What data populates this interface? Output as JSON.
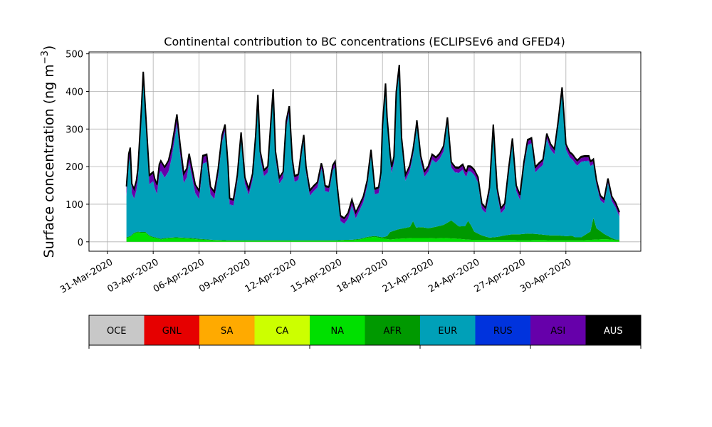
{
  "chart_data": {
    "type": "area",
    "stacked": true,
    "title": "Continental contribution to BC concentrations (ECLIPSEv6 and GFED4)",
    "ylabel": "Surface concentration (ng m⁻³)",
    "ylabel_main": "Surface concentration (ng m",
    "ylabel_sup": "−3",
    "ylabel_close": ")",
    "ylim": [
      -25,
      505
    ],
    "yticks": [
      "0",
      "100",
      "200",
      "300",
      "400",
      "500"
    ],
    "xlim": [
      -1.2,
      34.9
    ],
    "xticks": [
      {
        "pos": 0,
        "label": "31-Mar-2020"
      },
      {
        "pos": 3,
        "label": "03-Apr-2020"
      },
      {
        "pos": 6,
        "label": "06-Apr-2020"
      },
      {
        "pos": 9,
        "label": "09-Apr-2020"
      },
      {
        "pos": 12,
        "label": "12-Apr-2020"
      },
      {
        "pos": 15,
        "label": "15-Apr-2020"
      },
      {
        "pos": 18,
        "label": "18-Apr-2020"
      },
      {
        "pos": 21,
        "label": "21-Apr-2020"
      },
      {
        "pos": 24,
        "label": "24-Apr-2020"
      },
      {
        "pos": 27,
        "label": "27-Apr-2020"
      },
      {
        "pos": 30,
        "label": "30-Apr-2020"
      }
    ],
    "x_unit": "days since 31-Mar-2020 00:00",
    "grid": true,
    "legend": "colorbar below plot",
    "colors": {
      "OCE": "#c8c8c8",
      "GNL": "#e60000",
      "SA": "#ffaa00",
      "CA": "#ccff00",
      "NA": "#00e000",
      "AFR": "#009900",
      "EUR": "#00a0b8",
      "RUS": "#0033dd",
      "ASI": "#6600aa",
      "AUS": "#000000"
    },
    "legend_entries": [
      "OCE",
      "GNL",
      "SA",
      "CA",
      "NA",
      "AFR",
      "EUR",
      "RUS",
      "ASI",
      "AUS"
    ],
    "series": [
      {
        "name": "NA",
        "values": [
          [
            1.25,
            10
          ],
          [
            1.5,
            13
          ],
          [
            1.75,
            22
          ],
          [
            2.0,
            25
          ],
          [
            2.25,
            24
          ],
          [
            2.5,
            24
          ],
          [
            2.75,
            15
          ],
          [
            3.0,
            11
          ],
          [
            3.25,
            9
          ],
          [
            3.5,
            6
          ],
          [
            3.75,
            8
          ],
          [
            4.0,
            9
          ],
          [
            4.5,
            10
          ],
          [
            5.0,
            9
          ],
          [
            5.5,
            8
          ],
          [
            6.0,
            6
          ],
          [
            7.0,
            4
          ],
          [
            8.0,
            3
          ],
          [
            9.0,
            3
          ],
          [
            10.0,
            3
          ],
          [
            11.0,
            3
          ],
          [
            12.0,
            3
          ],
          [
            13.0,
            3
          ],
          [
            14.0,
            3
          ],
          [
            15.0,
            3
          ],
          [
            15.5,
            4
          ],
          [
            16.0,
            4
          ],
          [
            16.5,
            6
          ],
          [
            17.0,
            11
          ],
          [
            17.5,
            13
          ],
          [
            18.0,
            9
          ],
          [
            18.5,
            6
          ],
          [
            19.0,
            8
          ],
          [
            19.5,
            9
          ],
          [
            20.0,
            10
          ],
          [
            20.5,
            10
          ],
          [
            21.0,
            10
          ],
          [
            21.5,
            9
          ],
          [
            22.0,
            10
          ],
          [
            22.5,
            9
          ],
          [
            23.0,
            8
          ],
          [
            23.5,
            6
          ],
          [
            24.0,
            5
          ],
          [
            24.5,
            5
          ],
          [
            25.0,
            5
          ],
          [
            25.5,
            5
          ],
          [
            26.0,
            5
          ],
          [
            26.5,
            5
          ],
          [
            27.0,
            4
          ],
          [
            27.5,
            4
          ],
          [
            28.0,
            5
          ],
          [
            28.5,
            5
          ],
          [
            29.0,
            4
          ],
          [
            29.5,
            4
          ],
          [
            30.0,
            4
          ],
          [
            30.5,
            4
          ],
          [
            31.0,
            4
          ],
          [
            31.5,
            5
          ],
          [
            32.0,
            6
          ],
          [
            32.5,
            7
          ],
          [
            33.0,
            6
          ],
          [
            33.25,
            4
          ]
        ]
      },
      {
        "name": "AFR",
        "values": [
          [
            1.25,
            2
          ],
          [
            2.0,
            2
          ],
          [
            3.0,
            2
          ],
          [
            4.0,
            2
          ],
          [
            5.0,
            2
          ],
          [
            6.0,
            2
          ],
          [
            7.0,
            1
          ],
          [
            9.0,
            1
          ],
          [
            12.0,
            1
          ],
          [
            15.0,
            1
          ],
          [
            17.0,
            2
          ],
          [
            18.0,
            3
          ],
          [
            18.3,
            8
          ],
          [
            18.5,
            20
          ],
          [
            19.0,
            25
          ],
          [
            19.5,
            28
          ],
          [
            19.8,
            30
          ],
          [
            20.0,
            45
          ],
          [
            20.2,
            28
          ],
          [
            20.6,
            29
          ],
          [
            21.0,
            26
          ],
          [
            21.5,
            31
          ],
          [
            22.0,
            35
          ],
          [
            22.5,
            48
          ],
          [
            23.0,
            33
          ],
          [
            23.4,
            35
          ],
          [
            23.6,
            50
          ],
          [
            23.8,
            38
          ],
          [
            24.0,
            22
          ],
          [
            24.5,
            12
          ],
          [
            25.0,
            6
          ],
          [
            25.5,
            8
          ],
          [
            26.0,
            12
          ],
          [
            26.5,
            15
          ],
          [
            27.0,
            16
          ],
          [
            27.5,
            18
          ],
          [
            28.0,
            16
          ],
          [
            28.5,
            14
          ],
          [
            29.0,
            13
          ],
          [
            29.5,
            13
          ],
          [
            30.0,
            11
          ],
          [
            30.4,
            12
          ],
          [
            30.6,
            8
          ],
          [
            31.0,
            8
          ],
          [
            31.6,
            22
          ],
          [
            31.8,
            58
          ],
          [
            32.0,
            30
          ],
          [
            32.5,
            14
          ],
          [
            33.0,
            4
          ],
          [
            33.25,
            2
          ]
        ]
      },
      {
        "name": "EUR",
        "values": [
          [
            1.25,
            110
          ],
          [
            1.4,
            195
          ],
          [
            1.5,
            210
          ],
          [
            1.6,
            110
          ],
          [
            1.75,
            90
          ],
          [
            1.9,
            110
          ],
          [
            2.0,
            140
          ],
          [
            2.2,
            280
          ],
          [
            2.35,
            400
          ],
          [
            2.5,
            295
          ],
          [
            2.75,
            135
          ],
          [
            3.0,
            148
          ],
          [
            3.1,
            130
          ],
          [
            3.25,
            115
          ],
          [
            3.4,
            170
          ],
          [
            3.5,
            180
          ],
          [
            3.75,
            160
          ],
          [
            4.0,
            175
          ],
          [
            4.2,
            210
          ],
          [
            4.4,
            260
          ],
          [
            4.55,
            300
          ],
          [
            4.75,
            225
          ],
          [
            5.0,
            145
          ],
          [
            5.2,
            160
          ],
          [
            5.35,
            200
          ],
          [
            5.5,
            170
          ],
          [
            5.75,
            120
          ],
          [
            6.0,
            105
          ],
          [
            6.25,
            200
          ],
          [
            6.5,
            205
          ],
          [
            6.75,
            120
          ],
          [
            7.0,
            108
          ],
          [
            7.25,
            170
          ],
          [
            7.5,
            260
          ],
          [
            7.7,
            290
          ],
          [
            7.9,
            180
          ],
          [
            8.0,
            95
          ],
          [
            8.25,
            92
          ],
          [
            8.5,
            155
          ],
          [
            8.75,
            270
          ],
          [
            9.0,
            150
          ],
          [
            9.25,
            120
          ],
          [
            9.5,
            160
          ],
          [
            9.7,
            260
          ],
          [
            9.85,
            370
          ],
          [
            10.0,
            220
          ],
          [
            10.25,
            170
          ],
          [
            10.5,
            180
          ],
          [
            10.7,
            300
          ],
          [
            10.85,
            385
          ],
          [
            11.0,
            220
          ],
          [
            11.25,
            150
          ],
          [
            11.5,
            165
          ],
          [
            11.7,
            300
          ],
          [
            11.9,
            340
          ],
          [
            12.1,
            200
          ],
          [
            12.25,
            155
          ],
          [
            12.5,
            160
          ],
          [
            12.7,
            225
          ],
          [
            12.85,
            265
          ],
          [
            13.0,
            180
          ],
          [
            13.25,
            118
          ],
          [
            13.5,
            130
          ],
          [
            13.75,
            140
          ],
          [
            14.0,
            190
          ],
          [
            14.1,
            175
          ],
          [
            14.25,
            130
          ],
          [
            14.5,
            128
          ],
          [
            14.75,
            185
          ],
          [
            14.9,
            195
          ],
          [
            15.0,
            145
          ],
          [
            15.25,
            50
          ],
          [
            15.5,
            42
          ],
          [
            15.75,
            55
          ],
          [
            16.0,
            90
          ],
          [
            16.25,
            55
          ],
          [
            16.5,
            75
          ],
          [
            16.75,
            95
          ],
          [
            17.0,
            135
          ],
          [
            17.25,
            215
          ],
          [
            17.5,
            110
          ],
          [
            17.75,
            115
          ],
          [
            17.9,
            155
          ],
          [
            18.0,
            280
          ],
          [
            18.2,
            390
          ],
          [
            18.3,
            300
          ],
          [
            18.5,
            190
          ],
          [
            18.6,
            155
          ],
          [
            18.75,
            180
          ],
          [
            18.9,
            350
          ],
          [
            19.1,
            420
          ],
          [
            19.25,
            225
          ],
          [
            19.5,
            125
          ],
          [
            19.75,
            145
          ],
          [
            20.0,
            175
          ],
          [
            20.25,
            270
          ],
          [
            20.5,
            175
          ],
          [
            20.75,
            135
          ],
          [
            21.0,
            150
          ],
          [
            21.25,
            180
          ],
          [
            21.5,
            170
          ],
          [
            21.75,
            178
          ],
          [
            22.0,
            195
          ],
          [
            22.25,
            265
          ],
          [
            22.5,
            140
          ],
          [
            22.75,
            135
          ],
          [
            23.0,
            142
          ],
          [
            23.25,
            150
          ],
          [
            23.5,
            125
          ],
          [
            23.75,
            140
          ],
          [
            24.0,
            150
          ],
          [
            24.25,
            135
          ],
          [
            24.5,
            70
          ],
          [
            24.75,
            62
          ],
          [
            25.0,
            118
          ],
          [
            25.25,
            285
          ],
          [
            25.5,
            115
          ],
          [
            25.75,
            60
          ],
          [
            26.0,
            70
          ],
          [
            26.25,
            160
          ],
          [
            26.5,
            240
          ],
          [
            26.75,
            115
          ],
          [
            27.0,
            90
          ],
          [
            27.25,
            175
          ],
          [
            27.5,
            235
          ],
          [
            27.75,
            240
          ],
          [
            28.0,
            163
          ],
          [
            28.25,
            175
          ],
          [
            28.5,
            185
          ],
          [
            28.75,
            255
          ],
          [
            29.0,
            228
          ],
          [
            29.25,
            215
          ],
          [
            29.5,
            290
          ],
          [
            29.75,
            380
          ],
          [
            30.0,
            230
          ],
          [
            30.25,
            208
          ],
          [
            30.5,
            200
          ],
          [
            30.75,
            190
          ],
          [
            31.0,
            200
          ],
          [
            31.25,
            196
          ],
          [
            31.5,
            190
          ],
          [
            31.75,
            150
          ],
          [
            32.0,
            115
          ],
          [
            32.25,
            82
          ],
          [
            32.5,
            80
          ],
          [
            32.75,
            140
          ],
          [
            33.0,
            98
          ],
          [
            33.25,
            85
          ],
          [
            33.5,
            60
          ]
        ]
      },
      {
        "name": "RUS",
        "values": [
          [
            1.25,
            1
          ],
          [
            33.5,
            1
          ]
        ]
      },
      {
        "name": "ASI",
        "values": [
          [
            1.25,
            20
          ],
          [
            2.0,
            22
          ],
          [
            3.0,
            20
          ],
          [
            4.0,
            25
          ],
          [
            5.0,
            20
          ],
          [
            6.0,
            18
          ],
          [
            7.0,
            15
          ],
          [
            8.0,
            12
          ],
          [
            9.0,
            12
          ],
          [
            10.0,
            12
          ],
          [
            11.0,
            12
          ],
          [
            12.0,
            12
          ],
          [
            13.0,
            10
          ],
          [
            14.0,
            10
          ],
          [
            15.0,
            10
          ],
          [
            16.0,
            12
          ],
          [
            17.0,
            10
          ],
          [
            18.0,
            12
          ],
          [
            19.0,
            12
          ],
          [
            20.0,
            10
          ],
          [
            21.0,
            10
          ],
          [
            22.0,
            10
          ],
          [
            23.0,
            10
          ],
          [
            24.0,
            10
          ],
          [
            25.0,
            10
          ],
          [
            26.0,
            10
          ],
          [
            27.0,
            10
          ],
          [
            28.0,
            10
          ],
          [
            29.0,
            10
          ],
          [
            30.0,
            10
          ],
          [
            31.0,
            10
          ],
          [
            32.0,
            8
          ],
          [
            33.0,
            8
          ],
          [
            33.5,
            8
          ]
        ]
      },
      {
        "name": "AUS",
        "values": [
          [
            1.25,
            4
          ],
          [
            33.5,
            4
          ]
        ]
      }
    ]
  }
}
